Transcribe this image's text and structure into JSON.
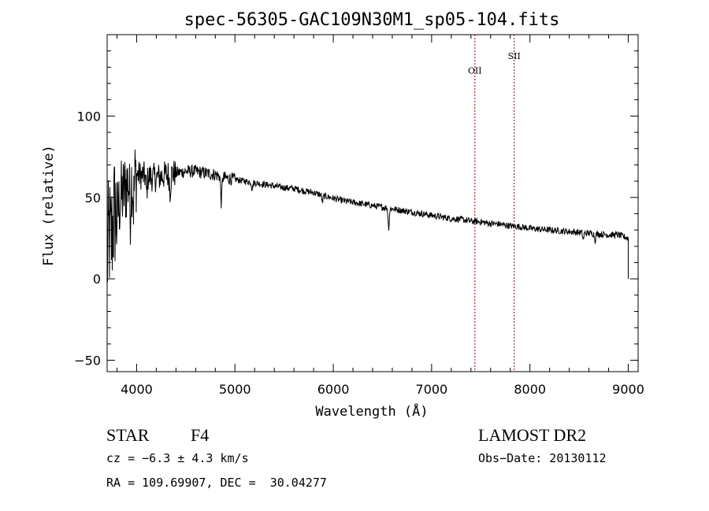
{
  "chart_data": {
    "type": "line",
    "title": "spec-56305-GAC109N30M1_sp05-104.fits",
    "xlabel": "Wavelength (Å)",
    "ylabel": "Flux (relative)",
    "xlim": [
      3700,
      9100
    ],
    "ylim": [
      -57,
      150
    ],
    "x_ticks": [
      4000,
      5000,
      6000,
      7000,
      8000,
      9000
    ],
    "x_tick_labels": [
      "4000",
      "5000",
      "6000",
      "7000",
      "8000",
      "9000"
    ],
    "y_ticks": [
      -50,
      0,
      50,
      100
    ],
    "y_tick_labels": [
      "−50",
      "0",
      "50",
      "100"
    ],
    "grid": false,
    "legend": "none",
    "series_color": "#000000",
    "line_marker_color": "#8b0000",
    "line_markers": [
      {
        "label": "OII",
        "x": 7440,
        "label_y": 126
      },
      {
        "label": "SII",
        "x": 7840,
        "label_y": 135
      }
    ],
    "spectrum": [
      [
        3700,
        10
      ],
      [
        3720,
        28
      ],
      [
        3740,
        22
      ],
      [
        3760,
        35
      ],
      [
        3780,
        42
      ],
      [
        3800,
        38
      ],
      [
        3830,
        48
      ],
      [
        3860,
        52
      ],
      [
        3900,
        58
      ],
      [
        3950,
        62
      ],
      [
        4000,
        64
      ],
      [
        4100,
        63
      ],
      [
        4200,
        62
      ],
      [
        4300,
        64
      ],
      [
        4400,
        65
      ],
      [
        4500,
        66
      ],
      [
        4600,
        66
      ],
      [
        4700,
        65
      ],
      [
        4800,
        64
      ],
      [
        4900,
        62
      ],
      [
        5000,
        61
      ],
      [
        5100,
        60
      ],
      [
        5200,
        59
      ],
      [
        5300,
        58
      ],
      [
        5400,
        57
      ],
      [
        5500,
        56
      ],
      [
        5600,
        55.5
      ],
      [
        5700,
        54
      ],
      [
        5800,
        53
      ],
      [
        5900,
        51
      ],
      [
        6000,
        49.5
      ],
      [
        6100,
        48
      ],
      [
        6200,
        47
      ],
      [
        6300,
        46
      ],
      [
        6400,
        45
      ],
      [
        6500,
        44
      ],
      [
        6600,
        43
      ],
      [
        6700,
        42
      ],
      [
        6800,
        41
      ],
      [
        6900,
        40
      ],
      [
        7000,
        39
      ],
      [
        7100,
        38
      ],
      [
        7200,
        37
      ],
      [
        7300,
        36.5
      ],
      [
        7400,
        35.5
      ],
      [
        7500,
        35
      ],
      [
        7600,
        34
      ],
      [
        7700,
        33.5
      ],
      [
        7800,
        32.5
      ],
      [
        7900,
        32
      ],
      [
        8000,
        31
      ],
      [
        8100,
        30.5
      ],
      [
        8200,
        30
      ],
      [
        8300,
        29.5
      ],
      [
        8400,
        29
      ],
      [
        8500,
        28.5
      ],
      [
        8600,
        28
      ],
      [
        8700,
        27.5
      ],
      [
        8800,
        27
      ],
      [
        8900,
        27
      ],
      [
        8950,
        26
      ],
      [
        9000,
        25
      ]
    ],
    "absorption_features": [
      {
        "x": 3934,
        "depth": 18
      },
      {
        "x": 3969,
        "depth": 16
      },
      {
        "x": 4102,
        "depth": 10
      },
      {
        "x": 4340,
        "depth": 10
      },
      {
        "x": 4861,
        "depth": 16
      },
      {
        "x": 5175,
        "depth": 4
      },
      {
        "x": 5890,
        "depth": 4
      },
      {
        "x": 6563,
        "depth": 12
      },
      {
        "x": 8542,
        "depth": 4
      },
      {
        "x": 8662,
        "depth": 4
      }
    ]
  },
  "info": {
    "object_class": "STAR",
    "subclass": "F4",
    "survey": "LAMOST DR2",
    "redshift_line": "cz = −6.3 ± 4.3 km/s",
    "obs_date_line": "Obs−Date: 20130112",
    "coords_line": "RA = 109.69907, DEC =  30.04277"
  }
}
